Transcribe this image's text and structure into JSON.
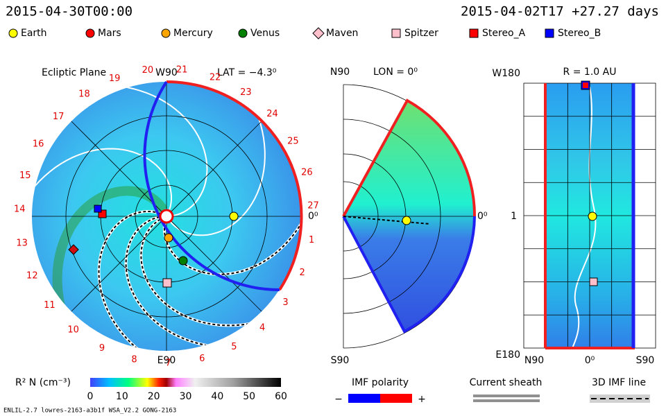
{
  "header": {
    "time": "2015-04-30T00:00",
    "info": "2015-04-02T17 +27.27 days"
  },
  "legend": [
    {
      "label": "Earth",
      "color": "#ffff00",
      "shape": "circle"
    },
    {
      "label": "Mars",
      "color": "#ff0000",
      "shape": "circle"
    },
    {
      "label": "Mercury",
      "color": "#ffa500",
      "shape": "circle"
    },
    {
      "label": "Venus",
      "color": "#008000",
      "shape": "circle"
    },
    {
      "label": "Maven",
      "color": "#ffc0cb",
      "shape": "diamond"
    },
    {
      "label": "Spitzer",
      "color": "#ffc0cb",
      "shape": "square"
    },
    {
      "label": "Stereo_A",
      "color": "#ff0000",
      "shape": "square"
    },
    {
      "label": "Stereo_B",
      "color": "#0000ff",
      "shape": "square"
    }
  ],
  "ecliptic": {
    "title": "Ecliptic Plane",
    "top": "W90",
    "bottom": "E90",
    "right": "0⁰",
    "lat": "LAT = −4.3⁰",
    "sector_labels": [
      "1",
      "2",
      "3",
      "4",
      "5",
      "6",
      "7",
      "8",
      "9",
      "10",
      "11",
      "12",
      "13",
      "14",
      "15",
      "16",
      "17",
      "18",
      "19",
      "20",
      "21",
      "22",
      "23",
      "24",
      "25",
      "26",
      "27"
    ]
  },
  "meridional": {
    "top": "N90",
    "bottom": "S90",
    "lon": "LON = 0⁰",
    "right": "0⁰"
  },
  "radial": {
    "title": "R = 1.0 AU",
    "top": "W180",
    "middle": "1",
    "bottom": "E180",
    "x_labels": [
      "N90",
      "0⁰",
      "S90"
    ]
  },
  "colorbar": {
    "label": "R² N (cm⁻³)",
    "ticks": [
      "0",
      "10",
      "20",
      "30",
      "40",
      "50",
      "60"
    ]
  },
  "imf_polarity": {
    "label": "IMF polarity",
    "minus": "−",
    "plus": "+"
  },
  "current_sheath": {
    "label": "Current sheath"
  },
  "imf_line": {
    "label": "3D IMF line"
  },
  "footer": "ENLIL-2.7 lowres-2163-a3b1f WSA_V2.2 GONG-2163"
}
